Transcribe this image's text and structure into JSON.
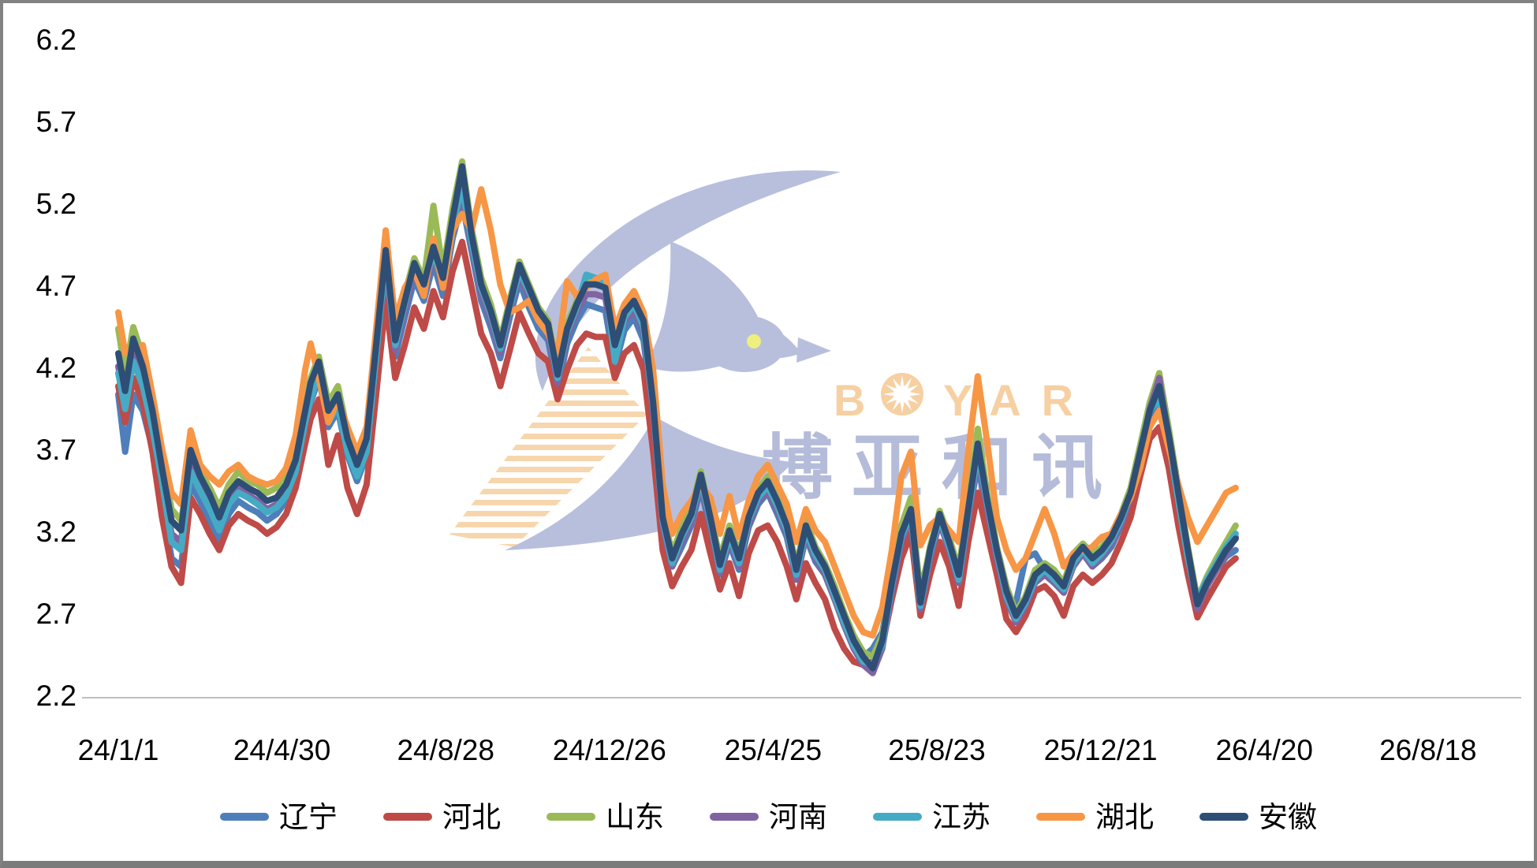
{
  "window": {
    "title": "Provincial egg price trend chart",
    "frame_border_color": "#828282",
    "background": "#ffffff"
  },
  "watermark": {
    "brand_latin": "BOYAR",
    "latin_parts": {
      "b": "B",
      "yar": "YAR"
    },
    "cjk": "博亚和讯",
    "dove_color": "#b8bfdd",
    "eye_color": "#eef07d",
    "latin_color": "#f6d0a2",
    "cjk_color": "#b5bcda",
    "stripe_color": "#f5cf9e"
  },
  "axes": {
    "y_label_color": "#000000",
    "x_label_color": "#000000",
    "axis_line_color": "#bfbfbf"
  },
  "chart_data": {
    "type": "line",
    "title": "",
    "xlabel": "",
    "ylabel": "",
    "grid": false,
    "legend_position": "bottom",
    "watermark_text": "BOYAR 博亚和讯",
    "ylim": [
      2.2,
      6.2
    ],
    "y_ticks": [
      6.2,
      5.7,
      5.2,
      4.7,
      4.2,
      3.7,
      3.2,
      2.7,
      2.2
    ],
    "x_tick_labels": [
      "24/1/1",
      "24/4/30",
      "24/8/28",
      "24/12/26",
      "25/4/25",
      "25/8/23",
      "25/12/21",
      "26/4/20",
      "26/8/18"
    ],
    "x_tick_interval_days": 120,
    "x_unit": "days since 24/1/1",
    "x": [
      0,
      5,
      11,
      18,
      25,
      32,
      39,
      46,
      53,
      60,
      67,
      74,
      81,
      88,
      95,
      102,
      109,
      116,
      123,
      130,
      137,
      141,
      147,
      154,
      161,
      168,
      175,
      182,
      189,
      196,
      203,
      210,
      217,
      224,
      231,
      238,
      245,
      252,
      259,
      266,
      273,
      280,
      287,
      294,
      301,
      308,
      315,
      322,
      329,
      336,
      343,
      350,
      357,
      364,
      371,
      378,
      385,
      392,
      399,
      406,
      413,
      420,
      427,
      434,
      441,
      448,
      455,
      462,
      469,
      476,
      483,
      490,
      497,
      504,
      511,
      518,
      525,
      532,
      539,
      546,
      553,
      560,
      567,
      574,
      581,
      588,
      595,
      602,
      609,
      616,
      623,
      630,
      637,
      644,
      651,
      658,
      665,
      672,
      679,
      686,
      693,
      700,
      707,
      714,
      721,
      728,
      735,
      742,
      749,
      756,
      763,
      770,
      777,
      784,
      791,
      798,
      805,
      812,
      819
    ],
    "series": [
      {
        "id": "liaoning",
        "name": "辽宁",
        "color": "#4e7fba",
        "values": [
          4.05,
          3.7,
          4.05,
          3.95,
          3.72,
          3.4,
          3.05,
          3.0,
          3.5,
          3.4,
          3.28,
          3.15,
          3.32,
          3.4,
          3.36,
          3.33,
          3.28,
          3.32,
          3.4,
          3.55,
          3.85,
          4.0,
          4.15,
          3.85,
          3.95,
          3.68,
          3.52,
          3.68,
          4.25,
          4.8,
          4.28,
          4.52,
          4.75,
          4.62,
          4.85,
          4.65,
          5.0,
          5.22,
          4.92,
          4.62,
          4.46,
          4.27,
          4.52,
          4.74,
          4.58,
          4.45,
          4.38,
          4.08,
          4.36,
          4.5,
          4.6,
          4.58,
          4.56,
          4.22,
          4.44,
          4.52,
          4.38,
          3.92,
          3.22,
          3.0,
          3.12,
          3.25,
          3.48,
          3.22,
          2.95,
          3.14,
          2.98,
          3.24,
          3.38,
          3.45,
          3.32,
          3.18,
          2.92,
          3.18,
          3.03,
          2.95,
          2.8,
          2.65,
          2.52,
          2.45,
          2.5,
          2.6,
          2.92,
          3.18,
          3.3,
          2.85,
          3.1,
          3.3,
          3.12,
          2.92,
          3.3,
          3.62,
          3.32,
          3.05,
          2.82,
          2.78,
          3.05,
          3.08,
          2.98,
          2.9,
          2.85,
          3.0,
          3.08,
          3.0,
          3.05,
          3.12,
          3.25,
          3.4,
          3.65,
          3.92,
          4.0,
          3.72,
          3.38,
          3.02,
          2.78,
          2.9,
          2.98,
          3.06,
          3.1
        ]
      },
      {
        "id": "hebei",
        "name": "河北",
        "color": "#be4b48",
        "values": [
          4.1,
          3.88,
          4.15,
          4.0,
          3.7,
          3.3,
          3.0,
          2.9,
          3.42,
          3.32,
          3.2,
          3.1,
          3.25,
          3.32,
          3.28,
          3.25,
          3.2,
          3.24,
          3.32,
          3.48,
          3.75,
          3.9,
          4.02,
          3.62,
          3.8,
          3.48,
          3.32,
          3.5,
          4.05,
          4.62,
          4.15,
          4.35,
          4.58,
          4.45,
          4.68,
          4.52,
          4.8,
          4.98,
          4.7,
          4.42,
          4.3,
          4.1,
          4.32,
          4.55,
          4.42,
          4.3,
          4.25,
          4.02,
          4.2,
          4.35,
          4.42,
          4.4,
          4.4,
          4.15,
          4.3,
          4.35,
          4.2,
          3.7,
          3.1,
          2.88,
          3.0,
          3.1,
          3.32,
          3.08,
          2.86,
          3.02,
          2.82,
          3.08,
          3.22,
          3.25,
          3.15,
          3.0,
          2.8,
          3.02,
          2.9,
          2.8,
          2.62,
          2.5,
          2.42,
          2.4,
          2.42,
          2.52,
          2.8,
          3.05,
          3.2,
          2.7,
          2.95,
          3.15,
          3.0,
          2.76,
          3.15,
          3.45,
          3.2,
          2.95,
          2.68,
          2.6,
          2.7,
          2.85,
          2.88,
          2.82,
          2.7,
          2.88,
          2.95,
          2.9,
          2.95,
          3.02,
          3.15,
          3.3,
          3.55,
          3.78,
          3.85,
          3.6,
          3.25,
          2.95,
          2.69,
          2.8,
          2.9,
          3.0,
          3.05
        ]
      },
      {
        "id": "shandong",
        "name": "山东",
        "color": "#9aba58",
        "values": [
          4.45,
          4.18,
          4.46,
          4.28,
          4.0,
          3.66,
          3.35,
          3.28,
          3.62,
          3.58,
          3.48,
          3.36,
          3.5,
          3.58,
          3.52,
          3.5,
          3.45,
          3.48,
          3.55,
          3.7,
          4.0,
          4.15,
          4.28,
          4.0,
          4.1,
          3.82,
          3.66,
          3.82,
          4.4,
          4.98,
          4.42,
          4.66,
          4.88,
          4.75,
          5.2,
          4.8,
          5.18,
          5.47,
          5.06,
          4.76,
          4.6,
          4.38,
          4.63,
          4.86,
          4.72,
          4.58,
          4.5,
          4.2,
          4.48,
          4.62,
          4.74,
          4.74,
          4.72,
          4.38,
          4.57,
          4.64,
          4.52,
          4.02,
          3.34,
          3.08,
          3.24,
          3.35,
          3.58,
          3.32,
          3.05,
          3.25,
          3.08,
          3.33,
          3.47,
          3.55,
          3.42,
          3.28,
          3.0,
          3.28,
          3.12,
          3.02,
          2.88,
          2.72,
          2.58,
          2.48,
          2.45,
          2.58,
          2.92,
          3.25,
          3.42,
          2.82,
          3.12,
          3.34,
          3.18,
          2.98,
          3.4,
          3.84,
          3.44,
          3.12,
          2.88,
          2.72,
          2.82,
          2.98,
          3.02,
          2.98,
          2.9,
          3.08,
          3.14,
          3.08,
          3.12,
          3.2,
          3.32,
          3.48,
          3.74,
          4.0,
          4.18,
          3.84,
          3.48,
          3.12,
          2.8,
          2.94,
          3.05,
          3.15,
          3.25
        ]
      },
      {
        "id": "henan",
        "name": "河南",
        "color": "#8064a2",
        "values": [
          4.22,
          4.0,
          4.3,
          4.15,
          3.88,
          3.55,
          3.2,
          3.15,
          3.62,
          3.5,
          3.38,
          3.25,
          3.4,
          3.48,
          3.44,
          3.4,
          3.35,
          3.38,
          3.45,
          3.6,
          3.9,
          4.05,
          4.2,
          3.9,
          4.0,
          3.72,
          3.56,
          3.72,
          4.3,
          4.85,
          4.32,
          4.56,
          4.8,
          4.66,
          4.9,
          4.7,
          5.05,
          5.28,
          4.96,
          4.66,
          4.5,
          4.3,
          4.55,
          4.78,
          4.64,
          4.5,
          4.42,
          4.12,
          4.4,
          4.55,
          4.66,
          4.66,
          4.64,
          4.3,
          4.5,
          4.56,
          4.44,
          3.95,
          3.25,
          3.0,
          3.15,
          3.27,
          3.5,
          3.25,
          2.96,
          3.16,
          3.0,
          3.25,
          3.4,
          3.46,
          3.34,
          3.2,
          2.92,
          3.2,
          3.05,
          2.95,
          2.8,
          2.64,
          2.5,
          2.4,
          2.35,
          2.5,
          2.85,
          3.15,
          3.3,
          2.74,
          3.05,
          3.27,
          3.1,
          2.9,
          3.3,
          3.66,
          3.35,
          3.05,
          2.8,
          2.66,
          2.76,
          2.9,
          2.95,
          2.9,
          2.84,
          3.0,
          3.08,
          3.0,
          3.06,
          3.14,
          3.26,
          3.42,
          3.68,
          3.96,
          4.15,
          3.78,
          3.42,
          3.06,
          2.74,
          2.88,
          2.98,
          3.08,
          3.18
        ]
      },
      {
        "id": "jiangsu",
        "name": "江苏",
        "color": "#45abc5",
        "values": [
          4.18,
          3.96,
          4.25,
          4.1,
          3.84,
          3.52,
          3.15,
          3.1,
          3.58,
          3.46,
          3.35,
          3.22,
          3.38,
          3.45,
          3.42,
          3.38,
          3.33,
          3.36,
          3.43,
          3.58,
          3.88,
          4.02,
          4.18,
          3.88,
          3.98,
          3.7,
          3.55,
          3.7,
          4.28,
          4.9,
          4.35,
          4.6,
          4.85,
          4.7,
          4.92,
          4.72,
          5.08,
          5.32,
          4.98,
          4.7,
          4.54,
          4.33,
          4.58,
          4.8,
          4.68,
          4.54,
          4.46,
          4.15,
          4.43,
          4.58,
          4.78,
          4.76,
          4.74,
          4.25,
          4.52,
          4.6,
          4.46,
          3.98,
          3.28,
          3.02,
          3.18,
          3.3,
          3.53,
          3.28,
          2.98,
          3.19,
          3.02,
          3.28,
          3.42,
          3.49,
          3.37,
          3.22,
          2.95,
          3.22,
          3.07,
          2.98,
          2.82,
          2.66,
          2.52,
          2.42,
          2.4,
          2.52,
          2.88,
          3.18,
          3.32,
          2.76,
          3.08,
          3.3,
          3.12,
          2.92,
          3.32,
          3.7,
          3.38,
          3.08,
          2.82,
          2.68,
          2.78,
          2.92,
          2.98,
          2.92,
          2.86,
          3.02,
          3.1,
          3.02,
          3.08,
          3.16,
          3.28,
          3.44,
          3.7,
          3.95,
          4.02,
          3.75,
          3.4,
          3.05,
          2.8,
          2.92,
          3.02,
          3.12,
          3.2
        ]
      },
      {
        "id": "hubei",
        "name": "湖北",
        "color": "#f79645",
        "values": [
          4.55,
          4.3,
          4.32,
          4.35,
          4.05,
          3.72,
          3.45,
          3.38,
          3.83,
          3.62,
          3.55,
          3.5,
          3.58,
          3.62,
          3.55,
          3.52,
          3.5,
          3.52,
          3.6,
          3.8,
          4.2,
          4.36,
          4.15,
          3.88,
          4.02,
          3.85,
          3.7,
          3.85,
          4.45,
          5.05,
          4.5,
          4.7,
          4.8,
          4.65,
          5.0,
          4.7,
          5.05,
          5.15,
          5.05,
          5.3,
          5.05,
          4.72,
          4.55,
          4.58,
          4.62,
          4.5,
          4.42,
          4.3,
          4.74,
          4.65,
          4.7,
          4.75,
          4.78,
          4.45,
          4.6,
          4.68,
          4.55,
          4.2,
          3.5,
          3.2,
          3.32,
          3.4,
          3.5,
          3.42,
          3.2,
          3.43,
          3.18,
          3.4,
          3.55,
          3.62,
          3.5,
          3.38,
          3.15,
          3.35,
          3.22,
          3.15,
          3.0,
          2.85,
          2.7,
          2.6,
          2.58,
          2.75,
          3.1,
          3.55,
          3.7,
          3.13,
          3.25,
          3.3,
          3.22,
          3.15,
          3.7,
          4.16,
          3.75,
          3.3,
          3.1,
          2.98,
          3.05,
          3.2,
          3.35,
          3.2,
          3.0,
          3.08,
          3.1,
          3.12,
          3.18,
          3.2,
          3.32,
          3.42,
          3.6,
          3.85,
          3.95,
          3.72,
          3.5,
          3.3,
          3.15,
          3.25,
          3.35,
          3.45,
          3.48
        ]
      },
      {
        "id": "anhui",
        "name": "安徽",
        "color": "#2e4e76",
        "values": [
          4.3,
          4.07,
          4.39,
          4.22,
          3.95,
          3.6,
          3.28,
          3.22,
          3.71,
          3.55,
          3.44,
          3.3,
          3.45,
          3.52,
          3.48,
          3.45,
          3.4,
          3.42,
          3.5,
          3.65,
          3.95,
          4.12,
          4.25,
          3.95,
          4.05,
          3.78,
          3.62,
          3.78,
          4.35,
          4.93,
          4.38,
          4.62,
          4.85,
          4.72,
          4.95,
          4.76,
          5.12,
          5.44,
          5.02,
          4.72,
          4.56,
          4.35,
          4.6,
          4.84,
          4.7,
          4.56,
          4.48,
          4.17,
          4.45,
          4.6,
          4.72,
          4.72,
          4.7,
          4.35,
          4.55,
          4.62,
          4.5,
          4.0,
          3.3,
          3.05,
          3.2,
          3.32,
          3.56,
          3.3,
          3.01,
          3.22,
          3.05,
          3.3,
          3.45,
          3.52,
          3.4,
          3.25,
          2.98,
          3.25,
          3.1,
          3.0,
          2.85,
          2.7,
          2.55,
          2.45,
          2.38,
          2.55,
          2.9,
          3.2,
          3.35,
          2.78,
          3.1,
          3.32,
          3.15,
          2.95,
          3.35,
          3.75,
          3.4,
          3.1,
          2.85,
          2.7,
          2.8,
          2.95,
          3.0,
          2.95,
          2.88,
          3.05,
          3.12,
          3.05,
          3.1,
          3.18,
          3.3,
          3.45,
          3.7,
          3.95,
          4.1,
          3.8,
          3.45,
          3.1,
          2.77,
          2.9,
          3.0,
          3.1,
          3.17
        ]
      }
    ]
  }
}
